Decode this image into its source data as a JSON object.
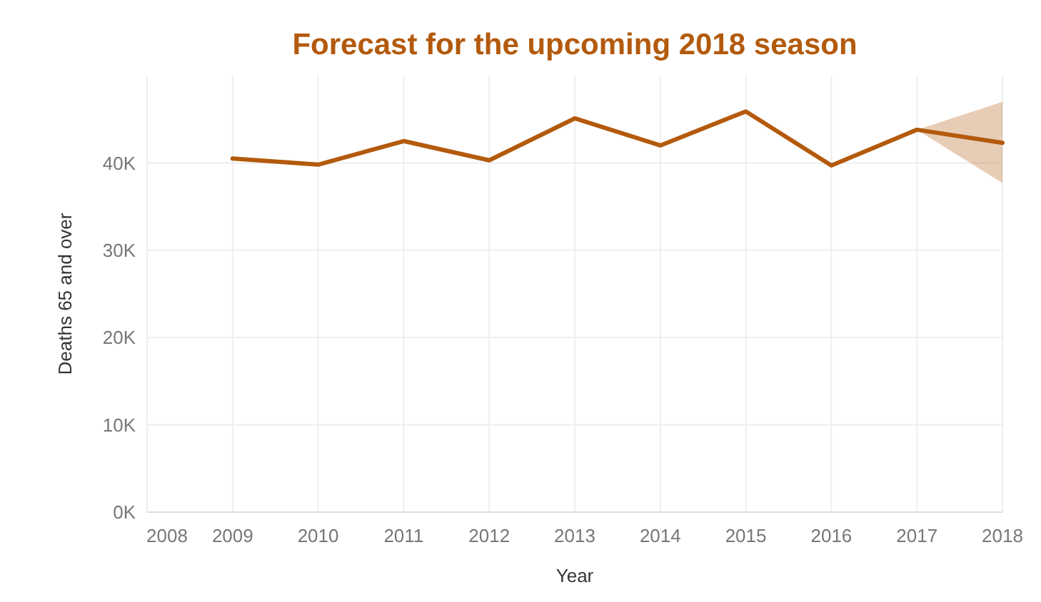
{
  "chart_data": {
    "type": "line",
    "title": "Forecast for the upcoming 2018 season",
    "xlabel": "Year",
    "ylabel": "Deaths 65 and over",
    "x": [
      2009,
      2010,
      2011,
      2012,
      2013,
      2014,
      2015,
      2016,
      2017,
      2018
    ],
    "series": [
      {
        "color": "#b35a0c",
        "values": [
          40500,
          39800,
          42500,
          40300,
          45100,
          42000,
          45900,
          39700,
          43800,
          42300
        ],
        "lower": [
          null,
          null,
          null,
          null,
          null,
          null,
          null,
          null,
          43800,
          37700
        ],
        "upper": [
          null,
          null,
          null,
          null,
          null,
          null,
          null,
          null,
          43800,
          47000
        ]
      }
    ],
    "xlim": [
      2008,
      2018
    ],
    "xticks": [
      2008,
      2009,
      2010,
      2011,
      2012,
      2013,
      2014,
      2015,
      2016,
      2017,
      2018
    ],
    "ylim": [
      0,
      50000
    ],
    "yticks": [
      {
        "value": 0,
        "label": "0K"
      },
      {
        "value": 10000,
        "label": "10K"
      },
      {
        "value": 20000,
        "label": "20K"
      },
      {
        "value": 30000,
        "label": "30K"
      },
      {
        "value": 40000,
        "label": "40K"
      }
    ],
    "grid": true,
    "line_style": "solid",
    "marker": "none"
  }
}
